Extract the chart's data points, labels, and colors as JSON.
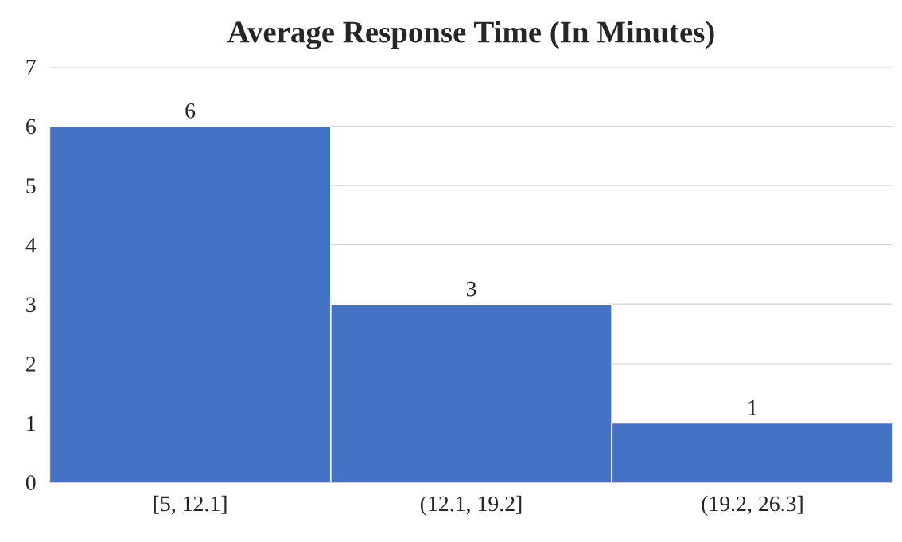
{
  "chart_data": {
    "type": "bar",
    "title": "Average Response Time (In Minutes)",
    "categories": [
      "[5, 12.1]",
      "(12.1, 19.2]",
      "(19.2, 26.3]"
    ],
    "values": [
      6,
      3,
      1
    ],
    "color": "#4472c4",
    "ylim": [
      0,
      7
    ],
    "yticks": [
      0,
      1,
      2,
      3,
      4,
      5,
      6,
      7
    ],
    "grid": "y",
    "data_labels": true
  }
}
